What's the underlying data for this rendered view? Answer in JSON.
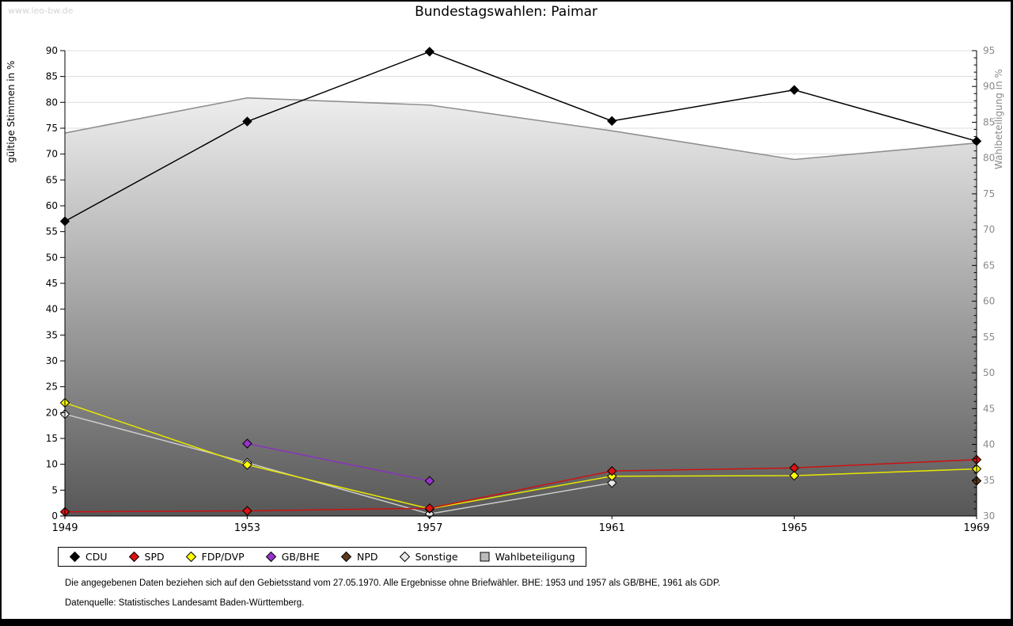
{
  "watermark": "www.leo-bw.de",
  "title": "Bundestagswahlen: Paimar",
  "footnotes": [
    "Die angegebenen Daten beziehen sich auf den Gebietsstand vom 27.05.1970. Alle Ergebnisse ohne Briefwähler. BHE: 1953 und 1957 als GB/BHE, 1961 als GDP.",
    "Datenquelle: Statistisches Landesamt Baden-Württemberg."
  ],
  "colors": {
    "grid": "#dcdcdc",
    "axis": "#000000",
    "right_axis_text": "#8a8a8a",
    "area_gradient_top": "#ffffff",
    "area_gradient_bottom": "#575757"
  },
  "chart_data": {
    "type": "line",
    "title": "Bundestagswahlen: Paimar",
    "categories": [
      "1949",
      "1953",
      "1957",
      "1961",
      "1965",
      "1969"
    ],
    "left_axis": {
      "label": "gültige Stimmen in %",
      "min": 0,
      "max": 90,
      "tick_step": 5
    },
    "right_axis": {
      "label": "Wahlbeteiligung in %",
      "min": 30,
      "max": 95,
      "tick_step": 5,
      "minor_tick_step": 1
    },
    "grid": true,
    "legend_position": "bottom-left",
    "series": [
      {
        "name": "CDU",
        "axis": "left",
        "legend_marker": "diamond",
        "color": "#000000",
        "marker_fill": "#000000",
        "values": [
          57.0,
          76.3,
          89.8,
          76.4,
          82.4,
          72.5
        ]
      },
      {
        "name": "SPD",
        "axis": "left",
        "legend_marker": "diamond",
        "color": "#cc1111",
        "marker_fill": "#dd1111",
        "values": [
          0.8,
          1.0,
          1.5,
          8.7,
          9.3,
          10.9
        ]
      },
      {
        "name": "FDP/DVP",
        "axis": "left",
        "legend_marker": "diamond",
        "color": "#e8e800",
        "marker_fill": "#ffff00",
        "values": [
          21.9,
          9.9,
          1.4,
          7.7,
          7.8,
          9.1
        ]
      },
      {
        "name": "GB/BHE",
        "axis": "left",
        "legend_marker": "diamond",
        "color": "#8833bb",
        "marker_fill": "#9933cc",
        "values": [
          null,
          14.0,
          6.8,
          null,
          null,
          null
        ]
      },
      {
        "name": "NPD",
        "axis": "left",
        "legend_marker": "diamond",
        "color": "#5e3a1e",
        "marker_fill": "#5e3a1e",
        "values": [
          null,
          null,
          null,
          null,
          null,
          6.8
        ]
      },
      {
        "name": "Sonstige",
        "axis": "left",
        "legend_marker": "diamond",
        "color": "#cccccc",
        "marker_fill": "#e8e8e8",
        "values": [
          19.7,
          10.3,
          0.4,
          6.4,
          null,
          null
        ]
      },
      {
        "name": "Wahlbeteiligung",
        "axis": "right",
        "legend_marker": "square",
        "color": "#909090",
        "marker_fill": "#bbbbbb",
        "area": true,
        "values": [
          83.5,
          88.4,
          87.4,
          83.8,
          79.8,
          82.1
        ]
      }
    ]
  }
}
